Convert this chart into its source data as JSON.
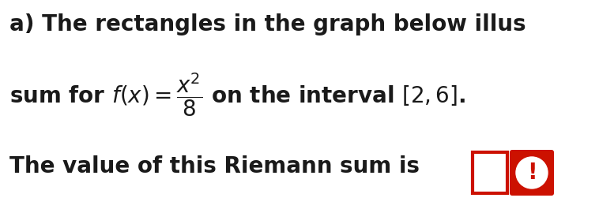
{
  "bg_color": "#ffffff",
  "text_color": "#1a1a1a",
  "line1": "a) The rectangles in the graph below illus",
  "line2": "sum for $f(x) = \\dfrac{x^2}{8}$ on the interval $[2, 6]$.",
  "line3": "The value of this Riemann sum is",
  "font_size": 20,
  "input_box_color": "#ffffff",
  "input_box_border": "#cc1100",
  "warning_bg": "#cc1100",
  "warning_text": "#ffffff",
  "fig_width": 7.58,
  "fig_height": 2.65,
  "dpi": 100
}
